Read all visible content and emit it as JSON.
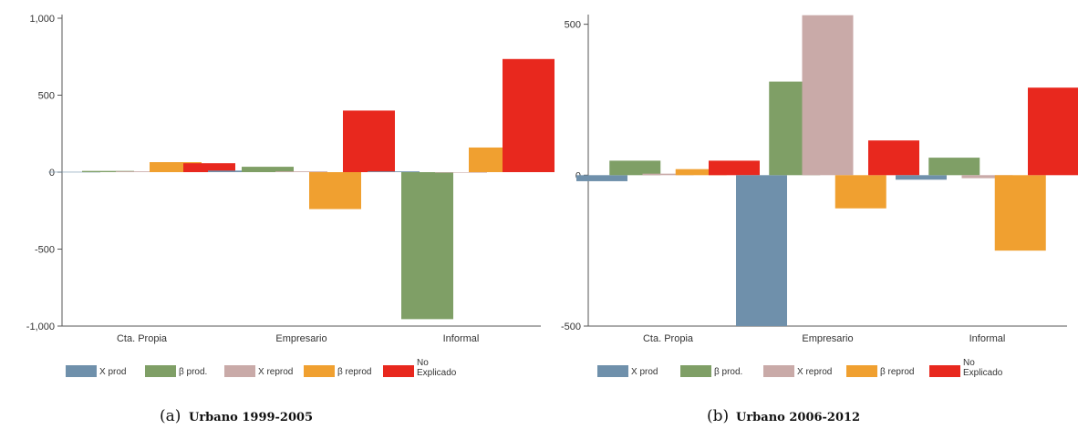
{
  "chart_data": [
    {
      "type": "bar",
      "caption_letter": "(a)",
      "caption": "Urbano 1999-2005",
      "categories": [
        "Cta. Propia",
        "Empresario",
        "Informal"
      ],
      "ylim": [
        -1000,
        1000
      ],
      "yticks": [
        -1000,
        -500,
        0,
        500,
        1000
      ],
      "ytick_labels": [
        "-1,000",
        "-500",
        "0",
        "500",
        "1,000"
      ],
      "grid": false,
      "legend_position": "bottom",
      "legend": [
        {
          "label": "X prod",
          "color": "#6f90ab"
        },
        {
          "label": "β prod.",
          "color": "#7f9f66"
        },
        {
          "label": "X reprod",
          "color": "#c9aaa8"
        },
        {
          "label": "β reprod",
          "color": "#f0a030"
        },
        {
          "label": "No Explicado",
          "color": "#e8281e"
        }
      ],
      "series": [
        {
          "name": "X prod",
          "color": "#6f90ab",
          "values": [
            2,
            10,
            5
          ]
        },
        {
          "name": "β prod.",
          "color": "#7f9f66",
          "values": [
            8,
            35,
            -955
          ]
        },
        {
          "name": "X reprod",
          "color": "#c9aaa8",
          "values": [
            5,
            5,
            0
          ]
        },
        {
          "name": "β reprod",
          "color": "#f0a030",
          "values": [
            65,
            -240,
            160
          ]
        },
        {
          "name": "No Explicado",
          "color": "#e8281e",
          "values": [
            58,
            400,
            735
          ]
        }
      ]
    },
    {
      "type": "bar",
      "caption_letter": "(b)",
      "caption": "Urbano 2006-2012",
      "categories": [
        "Cta. Propia",
        "Empresario",
        "Informal"
      ],
      "ylim": [
        -500,
        520
      ],
      "yticks": [
        -500,
        0,
        500
      ],
      "ytick_labels": [
        "-500",
        "0",
        "500"
      ],
      "grid": false,
      "legend_position": "bottom",
      "legend": [
        {
          "label": "X prod",
          "color": "#6f90ab"
        },
        {
          "label": "β prod.",
          "color": "#7f9f66"
        },
        {
          "label": "X reprod",
          "color": "#c9aaa8"
        },
        {
          "label": "β reprod",
          "color": "#f0a030"
        },
        {
          "label": "No Explicado",
          "color": "#e8281e"
        }
      ],
      "series": [
        {
          "name": "X prod",
          "color": "#6f90ab",
          "values": [
            -20,
            -500,
            -15
          ]
        },
        {
          "name": "β prod.",
          "color": "#7f9f66",
          "values": [
            48,
            310,
            58
          ]
        },
        {
          "name": "X reprod",
          "color": "#c9aaa8",
          "values": [
            5,
            530,
            -10
          ]
        },
        {
          "name": "β reprod",
          "color": "#f0a030",
          "values": [
            20,
            -110,
            -250
          ]
        },
        {
          "name": "No Explicado",
          "color": "#e8281e",
          "values": [
            48,
            115,
            290
          ]
        }
      ]
    }
  ]
}
